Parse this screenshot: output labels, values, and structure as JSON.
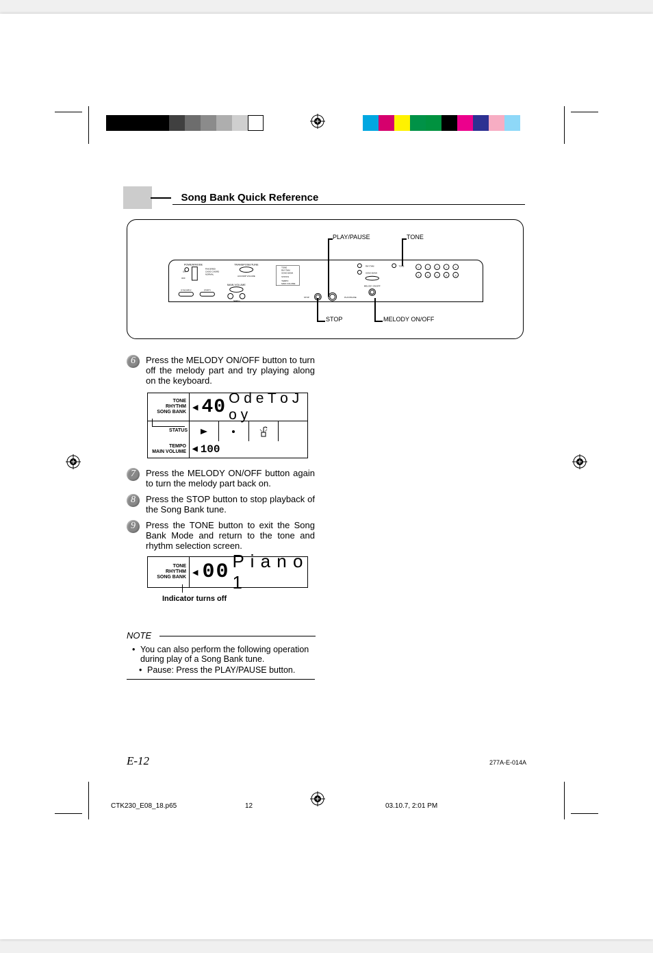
{
  "header": {
    "title": "Song Bank Quick Reference"
  },
  "swatches_left": [
    "#000000",
    "#000000",
    "#000000",
    "#000000",
    "#404040",
    "#6d6d6d",
    "#8b8b8b",
    "#aeaeae",
    "#cfcfcf",
    "#ffffff"
  ],
  "swatches_right": [
    "#00a7e1",
    "#d6006d",
    "#fff200",
    "#009247",
    "#00923f",
    "#000000",
    "#ec008c",
    "#2e3192",
    "#f7adc3",
    "#8ed8f8"
  ],
  "diagram": {
    "labels": {
      "play_pause": "PLAY/PAUSE",
      "tone": "TONE",
      "stop": "STOP",
      "melody": "MELODY ON/OFF"
    },
    "panel_texts": {
      "power_mode": "POWER/MODE",
      "transpose": "TRANSPOSE/TUNE",
      "main_volume": "MAIN VOLUME",
      "accomp_volume": "ACCOMP VOLUME",
      "tempo": "TEMPO",
      "rhythm": "RHYTHM",
      "tone_btn": "TONE",
      "song_bank": "SONG BANK",
      "melody_onoff": "MELODY ON/OFF",
      "stop_btn": "STOP",
      "play_pause_btn": "PLAY/PAUSE",
      "synchro": "SYNCHRO/\nFILL-IN",
      "start_stop": "START/\nSTOP"
    }
  },
  "steps": [
    {
      "n": "6",
      "text": "Press the MELODY ON/OFF button to turn off the melody part and try playing along on the keyboard."
    },
    {
      "n": "7",
      "text": "Press the MELODY ON/OFF button again to turn the melody part back on."
    },
    {
      "n": "8",
      "text": "Press the STOP button to stop playback of the Song Bank tune."
    },
    {
      "n": "9",
      "text": "Press the TONE button to exit the Song Bank Mode and return to the tone and rhythm selection screen."
    }
  ],
  "lcd1": {
    "left_labels": [
      "TONE",
      "RHYTHM",
      "SONG BANK"
    ],
    "status_label": "STATUS",
    "bottom_labels": [
      "TEMPO",
      "MAIN VOLUME"
    ],
    "number": "40",
    "name": "O d e T o J o y",
    "tempo": "100"
  },
  "lcd2": {
    "left_labels": [
      "TONE",
      "RHYTHM",
      "SONG BANK"
    ],
    "number": "00",
    "name": "P i a n o   1",
    "caption": "Indicator turns off"
  },
  "note": {
    "title": "NOTE",
    "items": [
      "You can also perform the following operation during play of a Song Bank tune.",
      "Pause: Press the PLAY/PAUSE button."
    ]
  },
  "page_number": "E-12",
  "pub_code": "277A-E-014A",
  "footer": {
    "file": "CTK230_E08_18.p65",
    "page": "12",
    "timestamp": "03.10.7, 2:01 PM"
  },
  "colors": {
    "header_block": "#cfcfcf",
    "step_num_bg": "#8a8a8a"
  }
}
